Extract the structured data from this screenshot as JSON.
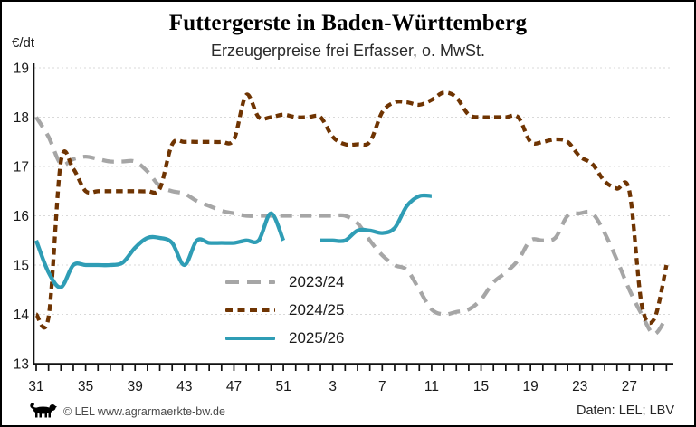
{
  "header": {
    "title": "Futtergerste in Baden-Württemberg",
    "subtitle": "Erzeugerpreise frei Erfasser, o. MwSt."
  },
  "axes": {
    "y_unit_label": "€/dt",
    "y_ticks": [
      19,
      18,
      17,
      16,
      15,
      14,
      13
    ],
    "x_major_labels": [
      "31",
      "35",
      "39",
      "43",
      "47",
      "51",
      "3",
      "7",
      "11",
      "15",
      "19",
      "23",
      "27"
    ]
  },
  "footer": {
    "copyright": "© LEL www.agrarmaerkte-bw.de",
    "source": "Daten: LEL; LBV"
  },
  "colors": {
    "series_2023_24": "#a6a6a6",
    "series_2024_25": "#6f3402",
    "series_2025_26": "#2f9db5",
    "gridline": "#d9d9d9",
    "axis": "#111111",
    "tick_label": "#1a1a1a"
  },
  "chart_data": {
    "type": "line",
    "title": "Futtergerste in Baden-Württemberg",
    "subtitle": "Erzeugerpreise frei Erfasser, o. MwSt.",
    "ylabel": "€/dt",
    "ylim": [
      13,
      19
    ],
    "grid": true,
    "legend_position": "inside-lower-center",
    "x_axis_note": "Kalenderwoche 31 bis 30 des Folgejahres",
    "categories": [
      "31",
      "32",
      "33",
      "34",
      "35",
      "36",
      "37",
      "38",
      "39",
      "40",
      "41",
      "42",
      "43",
      "44",
      "45",
      "46",
      "47",
      "48",
      "49",
      "50",
      "51",
      "52",
      "1",
      "2",
      "3",
      "4",
      "5",
      "6",
      "7",
      "8",
      "9",
      "10",
      "11",
      "12",
      "13",
      "14",
      "15",
      "16",
      "17",
      "18",
      "19",
      "20",
      "21",
      "22",
      "23",
      "24",
      "25",
      "26",
      "27",
      "28",
      "29",
      "30"
    ],
    "x_major_tick_indices": [
      0,
      4,
      8,
      12,
      16,
      20,
      24,
      28,
      32,
      36,
      40,
      44,
      48
    ],
    "series": [
      {
        "name": "2023/24",
        "color": "#a6a6a6",
        "dash": "long-dash",
        "values": [
          18.0,
          17.6,
          17.05,
          17.15,
          17.2,
          17.15,
          17.1,
          17.1,
          17.1,
          16.9,
          16.6,
          16.5,
          16.45,
          16.3,
          16.2,
          16.1,
          16.05,
          16.0,
          16.0,
          16.0,
          16.0,
          16.0,
          16.0,
          16.0,
          16.0,
          16.0,
          15.85,
          15.5,
          15.2,
          15.0,
          14.9,
          14.5,
          14.1,
          14.0,
          14.05,
          14.1,
          14.3,
          14.65,
          14.85,
          15.1,
          15.5,
          15.5,
          15.55,
          16.0,
          16.05,
          16.05,
          15.65,
          15.1,
          14.5,
          14.0,
          13.6,
          13.95
        ]
      },
      {
        "name": "2024/25",
        "color": "#6f3402",
        "dash": "short-dash",
        "values": [
          14.0,
          13.95,
          17.1,
          16.95,
          16.5,
          16.5,
          16.5,
          16.5,
          16.5,
          16.5,
          16.55,
          17.45,
          17.5,
          17.5,
          17.5,
          17.5,
          17.55,
          18.45,
          18.0,
          18.0,
          18.05,
          18.0,
          18.0,
          18.0,
          17.6,
          17.45,
          17.45,
          17.5,
          18.1,
          18.3,
          18.3,
          18.25,
          18.35,
          18.5,
          18.4,
          18.05,
          18.0,
          18.0,
          18.0,
          18.0,
          17.5,
          17.5,
          17.55,
          17.5,
          17.2,
          17.05,
          16.7,
          16.55,
          16.5,
          14.2,
          13.9,
          15.0
        ]
      },
      {
        "name": "2025/26",
        "color": "#2f9db5",
        "dash": "solid",
        "values": [
          15.5,
          14.85,
          14.55,
          15.0,
          15.0,
          15.0,
          15.0,
          15.05,
          15.35,
          15.55,
          15.55,
          15.45,
          15.0,
          15.5,
          15.45,
          15.45,
          15.45,
          15.5,
          15.5,
          16.05,
          15.5,
          null,
          null,
          15.5,
          15.5,
          15.5,
          15.7,
          15.7,
          15.65,
          15.75,
          16.2,
          16.4,
          16.4,
          null,
          null,
          null,
          null,
          null,
          null,
          null,
          null,
          null,
          null,
          null,
          null,
          null,
          null,
          null,
          null,
          null,
          null,
          null
        ]
      }
    ]
  }
}
